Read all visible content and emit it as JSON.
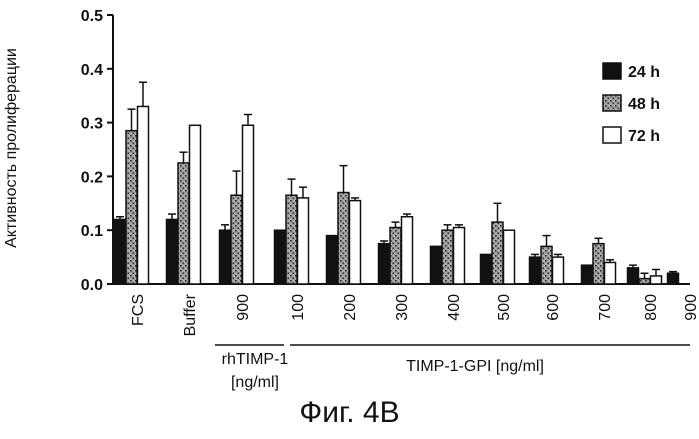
{
  "chart_data": {
    "type": "bar",
    "ylabel": "Активность пролиферации",
    "ylim": [
      0,
      0.5
    ],
    "yticks": [
      "0.0",
      "0.1",
      "0.2",
      "0.3",
      "0.4",
      "0.5"
    ],
    "categories": [
      "FCS",
      "Buffer",
      "900",
      "100",
      "200",
      "300",
      "400",
      "500",
      "600",
      "700",
      "800",
      "900"
    ],
    "series": [
      {
        "name": "24 h",
        "values": [
          0.12,
          0.12,
          0.1,
          0.1,
          0.09,
          0.075,
          0.07,
          0.055,
          0.05,
          0.035,
          0.03,
          0.02
        ],
        "errors": [
          0.005,
          0.01,
          0.01,
          0.0,
          0.0,
          0.005,
          0.0,
          0.0,
          0.005,
          0.0,
          0.005,
          0.003
        ],
        "color": "#111111",
        "pattern": "solid"
      },
      {
        "name": "48 h",
        "values": [
          0.285,
          0.225,
          0.165,
          0.165,
          0.17,
          0.105,
          0.1,
          0.115,
          0.07,
          0.075,
          0.01,
          0.0
        ],
        "errors": [
          0.04,
          0.02,
          0.045,
          0.03,
          0.05,
          0.01,
          0.01,
          0.035,
          0.02,
          0.01,
          0.01,
          0.0
        ],
        "color": "#666666",
        "pattern": "speckle"
      },
      {
        "name": "72 h",
        "values": [
          0.33,
          0.295,
          0.295,
          0.16,
          0.155,
          0.125,
          0.105,
          0.1,
          0.05,
          0.04,
          0.015,
          0.0
        ],
        "errors": [
          0.045,
          0.0,
          0.02,
          0.02,
          0.005,
          0.005,
          0.005,
          0.0,
          0.005,
          0.005,
          0.012,
          0.0
        ],
        "color": "#ffffff",
        "pattern": "open"
      }
    ],
    "groups": [
      {
        "label_lines": [
          "rhTIMP-1",
          "[ng/ml]"
        ]
      },
      {
        "label_lines": [
          "TIMP-1-GPI [ng/ml]"
        ]
      }
    ],
    "legend_position": "top-right",
    "grid": false
  },
  "caption": "Фиг. 4B"
}
